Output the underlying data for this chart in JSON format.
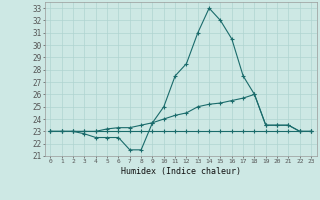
{
  "xlabel": "Humidex (Indice chaleur)",
  "background_color": "#cde8e4",
  "grid_color": "#b0d4d0",
  "line_color": "#1a6b6b",
  "xlim": [
    -0.5,
    23.5
  ],
  "ylim": [
    21,
    33.5
  ],
  "yticks": [
    21,
    22,
    23,
    24,
    25,
    26,
    27,
    28,
    29,
    30,
    31,
    32,
    33
  ],
  "xticks": [
    0,
    1,
    2,
    3,
    4,
    5,
    6,
    7,
    8,
    9,
    10,
    11,
    12,
    13,
    14,
    15,
    16,
    17,
    18,
    19,
    20,
    21,
    22,
    23
  ],
  "series": [
    [
      23.0,
      23.0,
      23.0,
      22.8,
      22.5,
      22.5,
      22.5,
      21.5,
      21.5,
      23.7,
      25.0,
      27.5,
      28.5,
      31.0,
      33.0,
      32.0,
      30.5,
      27.5,
      26.0,
      23.5,
      23.5,
      23.5,
      23.0,
      23.0
    ],
    [
      23.0,
      23.0,
      23.0,
      23.0,
      23.0,
      23.2,
      23.3,
      23.3,
      23.5,
      23.7,
      24.0,
      24.3,
      24.5,
      25.0,
      25.2,
      25.3,
      25.5,
      25.7,
      26.0,
      23.5,
      23.5,
      23.5,
      23.0,
      23.0
    ],
    [
      23.0,
      23.0,
      23.0,
      23.0,
      23.0,
      23.0,
      23.0,
      23.0,
      23.0,
      23.0,
      23.0,
      23.0,
      23.0,
      23.0,
      23.0,
      23.0,
      23.0,
      23.0,
      23.0,
      23.0,
      23.0,
      23.0,
      23.0,
      23.0
    ]
  ]
}
